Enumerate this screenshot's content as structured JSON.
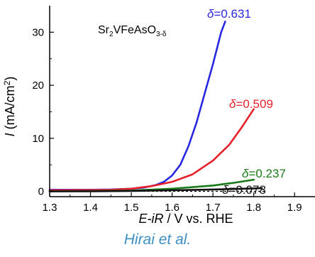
{
  "credit": "Hirai et al.",
  "chart_data": {
    "type": "line",
    "title": "Sr2VFeAsO3-δ",
    "title_parts": {
      "base": "Sr",
      "sub1": "2",
      "mid": "VFeAsO",
      "sub2": "3-δ"
    },
    "xlabel": "E - iR / V vs. RHE",
    "xlabel_parts": {
      "e": "E",
      "ir": "-iR",
      "rest": " / V vs. RHE"
    },
    "ylabel": "I (mA/cm2)",
    "ylabel_parts": {
      "i": "I",
      "unit": " (mA/cm",
      "sup": "2",
      "close": ")"
    },
    "xlim": [
      1.3,
      1.95
    ],
    "ylim": [
      -1,
      35
    ],
    "xticks": [
      "1.3",
      "1.4",
      "1.5",
      "1.6",
      "1.7",
      "1.8",
      "1.9"
    ],
    "yticks": [
      "0",
      "10",
      "20",
      "30"
    ],
    "grid": false,
    "baseline_dashed_y": 0,
    "series": [
      {
        "name": "δ=0.631",
        "label_prefix": "δ",
        "label_value": "=0.631",
        "color": "#2828e0",
        "x": [
          1.3,
          1.4,
          1.45,
          1.5,
          1.53,
          1.56,
          1.58,
          1.6,
          1.62,
          1.64,
          1.66,
          1.68,
          1.7,
          1.72,
          1.73
        ],
        "y": [
          0.3,
          0.3,
          0.35,
          0.5,
          0.7,
          1.2,
          1.8,
          3.0,
          5.0,
          8.5,
          13.0,
          18.5,
          24.0,
          30.0,
          32.0
        ]
      },
      {
        "name": "δ=0.509",
        "label_prefix": "δ",
        "label_value": "=0.509",
        "color": "#e8202a",
        "x": [
          1.3,
          1.4,
          1.45,
          1.5,
          1.55,
          1.6,
          1.65,
          1.7,
          1.74,
          1.77,
          1.8
        ],
        "y": [
          0.2,
          0.25,
          0.3,
          0.5,
          1.0,
          1.8,
          3.2,
          5.8,
          8.8,
          12.0,
          15.5
        ]
      },
      {
        "name": "δ=0.237",
        "label_prefix": "δ",
        "label_value": "=0.237",
        "color": "#1a7a1a",
        "x": [
          1.3,
          1.4,
          1.5,
          1.6,
          1.7,
          1.75,
          1.8
        ],
        "y": [
          0.0,
          0.05,
          0.15,
          0.5,
          1.1,
          1.6,
          2.2
        ]
      },
      {
        "name": "δ=0.078",
        "label_prefix": "δ",
        "label_value": "=0.078",
        "color": "#111111",
        "x": [
          1.3,
          1.4,
          1.5,
          1.6,
          1.7,
          1.8,
          1.82
        ],
        "y": [
          0.0,
          0.02,
          0.08,
          0.2,
          0.35,
          0.55,
          0.6
        ]
      }
    ]
  }
}
